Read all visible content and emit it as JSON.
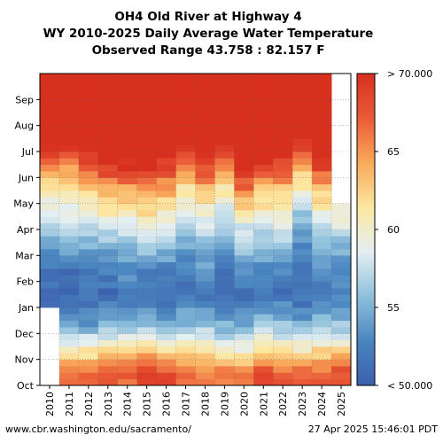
{
  "chart_data": {
    "type": "heatmap",
    "title": "OH4 Old River at Highway 4",
    "subtitle": "WY 2010-2025 Daily Average Water Temperature",
    "observed_range": "Observed Range 43.758 : 82.157 F",
    "x_tick_labels": [
      "2010",
      "2011",
      "2012",
      "2013",
      "2014",
      "2015",
      "2016",
      "2017",
      "2018",
      "2019",
      "2020",
      "2021",
      "2022",
      "2023",
      "2024",
      "2025"
    ],
    "y_tick_labels": [
      "Oct",
      "Nov",
      "Dec",
      "Jan",
      "Feb",
      "Mar",
      "Apr",
      "May",
      "Jun",
      "Jul",
      "Aug",
      "Sep"
    ],
    "colorbar": {
      "min": 50,
      "max": 70,
      "ticks": [
        {
          "value": 70,
          "label": "> 70.000"
        },
        {
          "value": 65,
          "label": "65"
        },
        {
          "value": 60,
          "label": "60"
        },
        {
          "value": 55,
          "label": "55"
        },
        {
          "value": 50,
          "label": "< 50.000"
        }
      ],
      "colors": [
        "#3b5fae",
        "#4a86c0",
        "#8fc0dc",
        "#e4eff2",
        "#fde7a0",
        "#f9a95a",
        "#ea5b37",
        "#d7301f"
      ]
    },
    "grid": true,
    "monthly_mean_F_by_year": [
      {
        "year": "2010",
        "oct": null,
        "nov": null,
        "dec": null,
        "jan": 51,
        "feb": 51.5,
        "mar": 54,
        "apr": 58,
        "may": 61,
        "jun": 66,
        "jul": 72,
        "aug": 74,
        "sep": 72
      },
      {
        "year": "2011",
        "oct": 66,
        "nov": 60,
        "dec": 54,
        "jan": 51,
        "feb": 51.5,
        "mar": 55,
        "apr": 58,
        "may": 61.5,
        "jun": 65,
        "jul": 72,
        "aug": 73,
        "sep": 72
      },
      {
        "year": "2012",
        "oct": 66,
        "nov": 60,
        "dec": 53,
        "jan": 51.5,
        "feb": 52.5,
        "mar": 55,
        "apr": 58.5,
        "may": 62,
        "jun": 68,
        "jul": 73,
        "aug": 74,
        "sep": 72
      },
      {
        "year": "2013",
        "oct": 67,
        "nov": 61,
        "dec": 54,
        "jan": 51,
        "feb": 52.5,
        "mar": 55.5,
        "apr": 60,
        "may": 64,
        "jun": 70,
        "jul": 74,
        "aug": 74,
        "sep": 72
      },
      {
        "year": "2014",
        "oct": 67,
        "nov": 61,
        "dec": 54,
        "jan": 52,
        "feb": 53.5,
        "mar": 56,
        "apr": 60,
        "may": 64,
        "jun": 70,
        "jul": 74,
        "aug": 75,
        "sep": 73
      },
      {
        "year": "2015",
        "oct": 68,
        "nov": 62,
        "dec": 55,
        "jan": 51.5,
        "feb": 53,
        "mar": 57,
        "apr": 61,
        "may": 65,
        "jun": 70,
        "jul": 75,
        "aug": 75,
        "sep": 73
      },
      {
        "year": "2016",
        "oct": 68,
        "nov": 60,
        "dec": 54,
        "jan": 51,
        "feb": 53,
        "mar": 56,
        "apr": 60,
        "may": 64,
        "jun": 69,
        "jul": 74,
        "aug": 74,
        "sep": 72
      },
      {
        "year": "2017",
        "oct": 67,
        "nov": 60,
        "dec": 55,
        "jan": 51.5,
        "feb": 52.5,
        "mar": 54.5,
        "apr": 57.5,
        "may": 61,
        "jun": 66,
        "jul": 73,
        "aug": 74,
        "sep": 72
      },
      {
        "year": "2018",
        "oct": 66,
        "nov": 61,
        "dec": 55,
        "jan": 52,
        "feb": 54,
        "mar": 56,
        "apr": 58.5,
        "may": 63,
        "jun": 69,
        "jul": 73,
        "aug": 74,
        "sep": 72
      },
      {
        "year": "2019",
        "oct": 66,
        "nov": 59,
        "dec": 54,
        "jan": 51.5,
        "feb": 52,
        "mar": 54.5,
        "apr": 57,
        "may": 61,
        "jun": 66,
        "jul": 72,
        "aug": 73,
        "sep": 71
      },
      {
        "year": "2020",
        "oct": 66,
        "nov": 59,
        "dec": 54,
        "jan": 51.5,
        "feb": 53.5,
        "mar": 56.5,
        "apr": 59.5,
        "may": 66,
        "jun": 70,
        "jul": 73,
        "aug": 75,
        "sep": 73
      },
      {
        "year": "2021",
        "oct": 68,
        "nov": 61,
        "dec": 55,
        "jan": 52,
        "feb": 53.5,
        "mar": 55.5,
        "apr": 60,
        "may": 63,
        "jun": 69,
        "jul": 74,
        "aug": 74,
        "sep": 72
      },
      {
        "year": "2022",
        "oct": 67,
        "nov": 60,
        "dec": 55,
        "jan": 51.5,
        "feb": 53,
        "mar": 56,
        "apr": 59.5,
        "may": 63,
        "jun": 68,
        "jul": 73,
        "aug": 74,
        "sep": 72
      },
      {
        "year": "2023",
        "oct": 67,
        "nov": 60,
        "dec": 54,
        "jan": 51,
        "feb": 51.5,
        "mar": 53,
        "apr": 56,
        "may": 60,
        "jun": 64,
        "jul": 71,
        "aug": 74,
        "sep": 72
      },
      {
        "year": "2024",
        "oct": 67,
        "nov": 61,
        "dec": 55,
        "jan": 52,
        "feb": 53,
        "mar": 55.5,
        "apr": 59,
        "may": 63,
        "jun": 69,
        "jul": 73,
        "aug": 74,
        "sep": 72
      },
      {
        "year": "2025",
        "oct": 68,
        "nov": 61,
        "dec": 55,
        "jan": 52,
        "feb": 53.5,
        "mar": 56,
        "apr": 60,
        "may": null,
        "jun": null,
        "jul": null,
        "aug": null,
        "sep": null
      }
    ]
  },
  "footer": {
    "left": "www.cbr.washington.edu/sacramento/",
    "right": "27 Apr 2025 15:46:01 PDT"
  }
}
